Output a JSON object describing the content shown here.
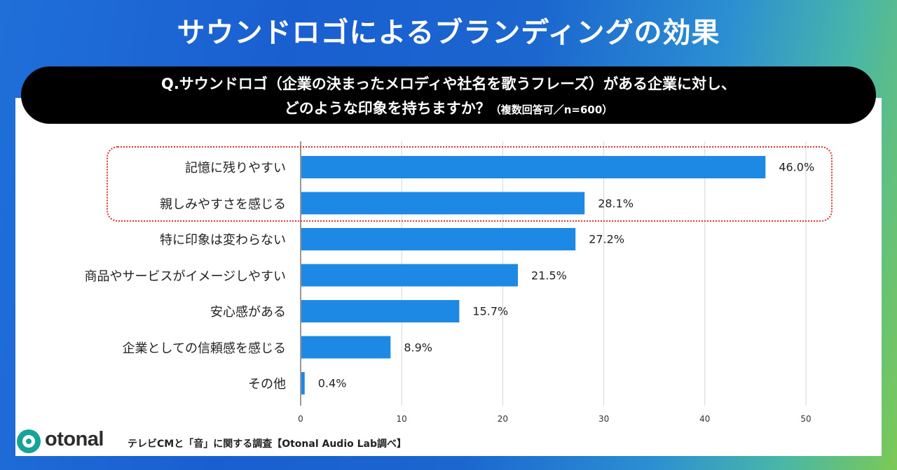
{
  "title": "サウンドロゴによるブランディングの効果",
  "question": {
    "line1": "Q.サウンドロゴ（企業の決まったメロディや社名を歌うフレーズ）がある企業に対し、",
    "line2": "どのような印象を持ちますか？",
    "note": "（複数回答可／n=600）"
  },
  "chart_data": {
    "type": "bar",
    "orientation": "horizontal",
    "categories": [
      "記憶に残りやすい",
      "親しみやすさを感じる",
      "特に印象は変わらない",
      "商品やサービスがイメージしやすい",
      "安心感がある",
      "企業としての信頼感を感じる",
      "その他"
    ],
    "values": [
      46.0,
      28.1,
      27.2,
      21.5,
      15.7,
      8.9,
      0.4
    ],
    "value_labels": [
      "46.0%",
      "28.1%",
      "27.2%",
      "21.5%",
      "15.7%",
      "8.9%",
      "0.4%"
    ],
    "xlim": [
      0,
      50
    ],
    "xticks": [
      0,
      10,
      20,
      30,
      40,
      50
    ],
    "grid": true,
    "bar_color": "#1e88e5",
    "highlighted_categories": [
      "記憶に残りやすい",
      "親しみやすさを感じる"
    ],
    "highlight_color": "#d9342b"
  },
  "footer": {
    "logo_text": "otonal",
    "logo_color": "#18a39a",
    "source": "テレビCMと「音」に関する調査【Otonal Audio Lab調べ】"
  }
}
